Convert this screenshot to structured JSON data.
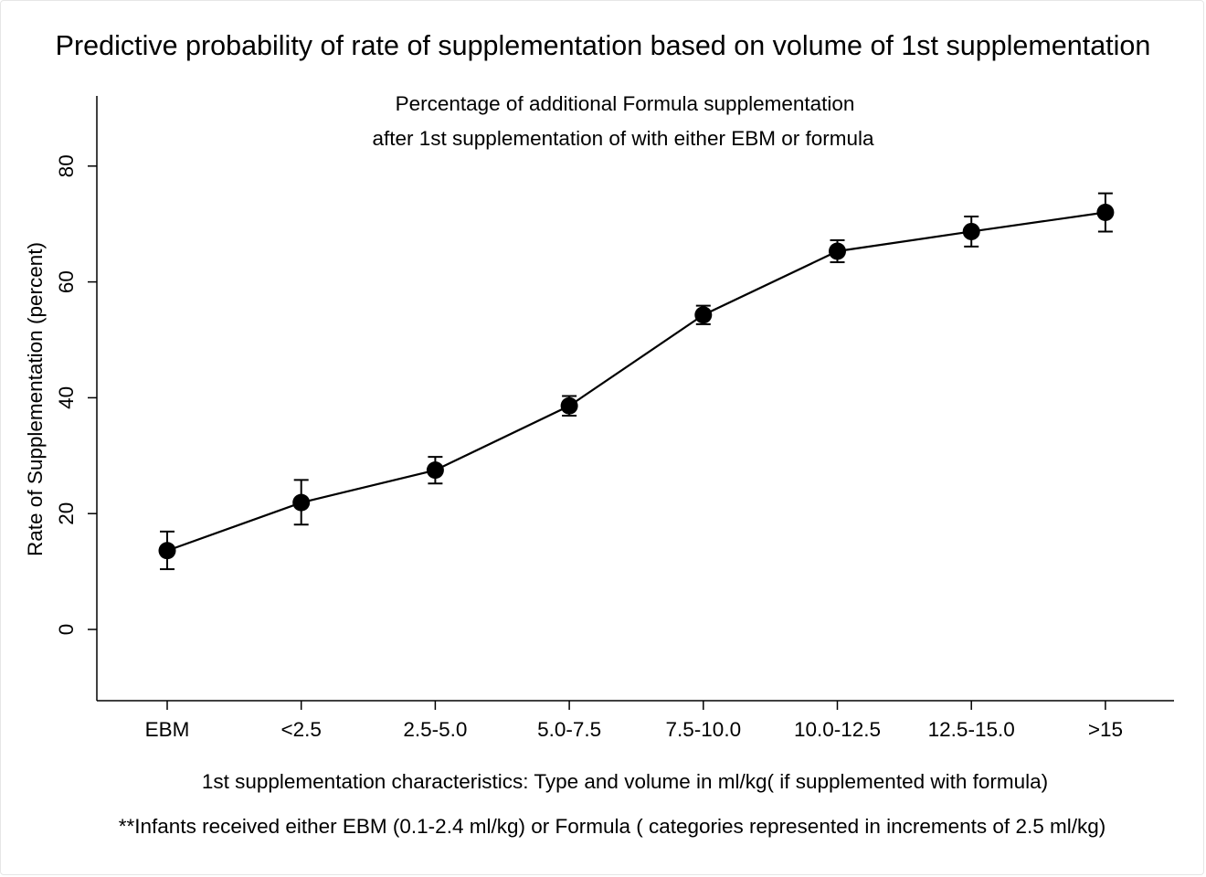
{
  "chart_data": {
    "type": "line",
    "title": "Predictive probability of rate of supplementation based on volume of 1st supplementation",
    "subtitle_lines": [
      "Percentage of additional Formula supplementation",
      "after 1st supplementation of with either EBM or formula"
    ],
    "xlabel": "1st supplementation characteristics: Type and volume in ml/kg( if supplemented with formula)",
    "note": "**Infants received either EBM (0.1-2.4 ml/kg) or Formula ( categories represented in increments of 2.5 ml/kg)",
    "ylabel": "Rate of Supplementation (percent)",
    "categories": [
      "EBM",
      "<2.5",
      "2.5-5.0",
      "5.0-7.5",
      "7.5-10.0",
      "10.0-12.5",
      "12.5-15.0",
      ">15"
    ],
    "values": [
      13.6,
      21.9,
      27.5,
      38.6,
      54.3,
      65.3,
      68.7,
      72.0
    ],
    "ci_lower": [
      10.4,
      18.1,
      25.2,
      36.9,
      52.7,
      63.4,
      66.1,
      68.7
    ],
    "ci_upper": [
      16.9,
      25.8,
      29.8,
      40.3,
      55.9,
      67.2,
      71.3,
      75.3
    ],
    "yticks": [
      0,
      20,
      40,
      60,
      80
    ],
    "ylim": [
      -12,
      92
    ],
    "grid": false,
    "legend": "none",
    "colors": {
      "line": "#000000",
      "marker": "#000000"
    }
  }
}
